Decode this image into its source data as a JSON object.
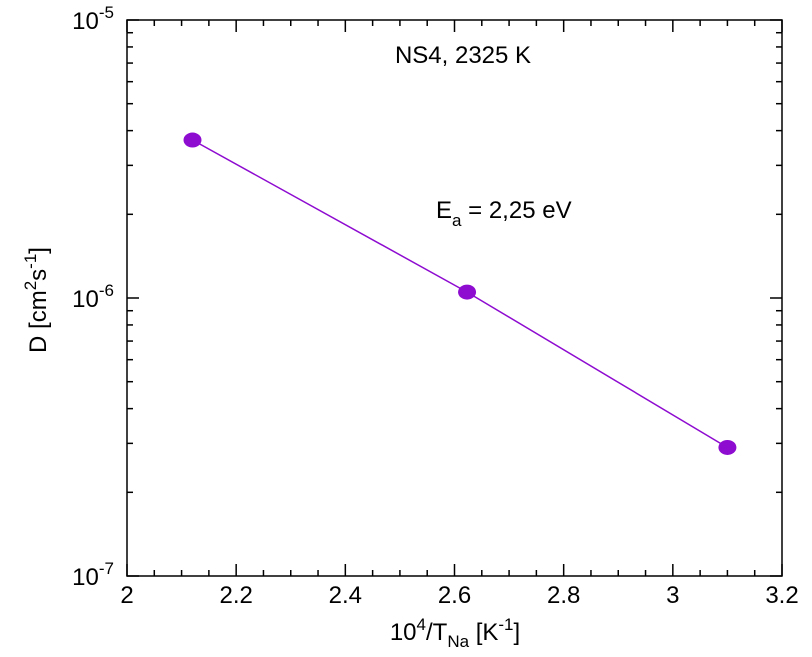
{
  "chart_data": {
    "type": "scatter",
    "x_scale": "linear",
    "y_scale": "log",
    "xlim": [
      2,
      3.2
    ],
    "ylim": [
      1e-07,
      1e-05
    ],
    "x_ticks": [
      2,
      2.2,
      2.4,
      2.6,
      2.8,
      3,
      3.2
    ],
    "x_tick_labels": [
      "2",
      "2.2",
      "2.4",
      "2.6",
      "2.8",
      "3",
      "3.2"
    ],
    "y_major_ticks": [
      {
        "value": 1e-05,
        "base": "10",
        "exp": "-5"
      },
      {
        "value": 1e-06,
        "base": "10",
        "exp": "-6"
      },
      {
        "value": 1e-07,
        "base": "10",
        "exp": "-7"
      }
    ],
    "xlabel": {
      "prefix": "10",
      "sup": "4",
      "mid": "/T",
      "sub": "Na",
      "unit_open": " [K",
      "unit_sup": "-1",
      "unit_close": "]"
    },
    "ylabel": {
      "prefix": "D [cm",
      "sup1": "2",
      "mid": "s",
      "sup2": "-1",
      "close": "]"
    },
    "series": [
      {
        "marker_color": "#8e0bd0",
        "line_color": "#8e0bd0",
        "points": [
          {
            "x": 2.12,
            "y": 3.7e-06
          },
          {
            "x": 2.623,
            "y": 1.05e-06
          },
          {
            "x": 3.1,
            "y": 2.9e-07
          }
        ]
      }
    ],
    "annotations": {
      "title": "NS4, 2325 K",
      "energy": {
        "main": "E",
        "sub": "a",
        "rest": " = 2,25 eV"
      }
    },
    "grid": false
  }
}
